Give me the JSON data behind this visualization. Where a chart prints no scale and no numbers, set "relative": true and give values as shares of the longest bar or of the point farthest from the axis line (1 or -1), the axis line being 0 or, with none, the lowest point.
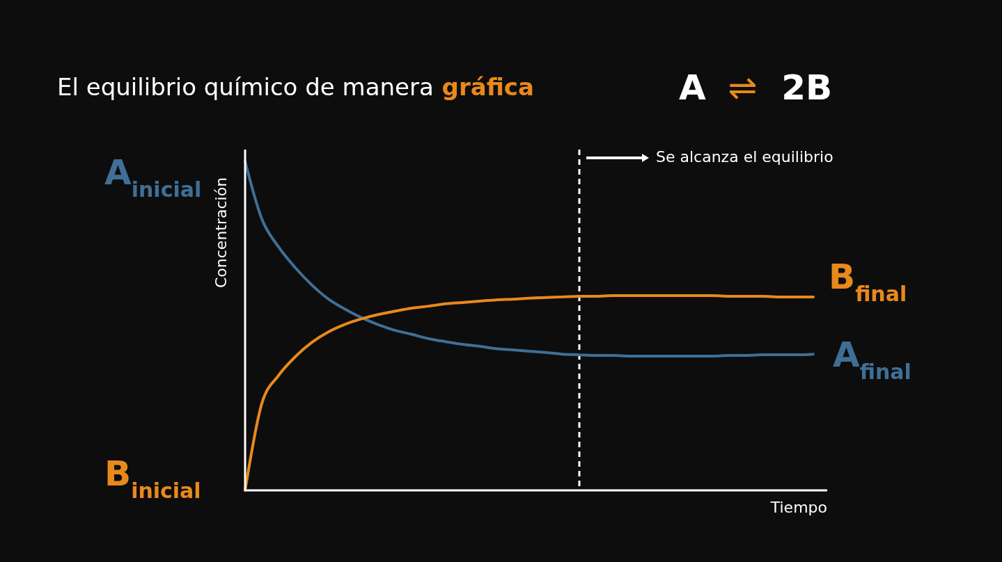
{
  "chart_data": {
    "type": "line",
    "title": "El equilibrio químico de manera gráfica",
    "xlabel": "Tiempo",
    "ylabel": "Concentración",
    "relative": true,
    "categories": [
      null,
      null,
      null,
      null,
      null,
      null,
      null,
      null,
      null,
      null,
      null,
      null,
      null,
      null,
      null,
      null,
      null,
      null,
      null,
      null,
      null,
      null,
      null,
      null,
      null,
      null,
      null,
      null,
      null,
      null,
      null,
      null,
      null,
      null,
      null
    ],
    "series": [
      {
        "color": "#3f6f96",
        "values": [
          1,
          0.825,
          0.74,
          0.677,
          0.624,
          0.581,
          0.55,
          0.524,
          0.503,
          0.486,
          0.474,
          0.461,
          0.452,
          0.444,
          0.438,
          0.431,
          0.427,
          0.423,
          0.419,
          0.414,
          0.412,
          0.41,
          0.41,
          0.408,
          0.408,
          0.408,
          0.408,
          0.408,
          0.408,
          0.41,
          0.41,
          0.412,
          0.412,
          0.412,
          0.414
        ]
      },
      {
        "color": "#e8891c",
        "values": [
          0,
          0.264,
          0.349,
          0.406,
          0.45,
          0.482,
          0.505,
          0.522,
          0.535,
          0.545,
          0.554,
          0.56,
          0.567,
          0.571,
          0.575,
          0.579,
          0.581,
          0.584,
          0.586,
          0.588,
          0.59,
          0.59,
          0.592,
          0.592,
          0.592,
          0.592,
          0.592,
          0.592,
          0.592,
          0.59,
          0.59,
          0.59,
          0.588,
          0.588,
          0.588
        ]
      }
    ],
    "annotations": [
      "A$_{inicial}$",
      "B$_{inicial}$",
      "B$_{final}$",
      "A$_{final}$",
      "Se alcanza el equilibrio",
      "A ⇌ 2B"
    ],
    "line_style": "solid"
  }
}
